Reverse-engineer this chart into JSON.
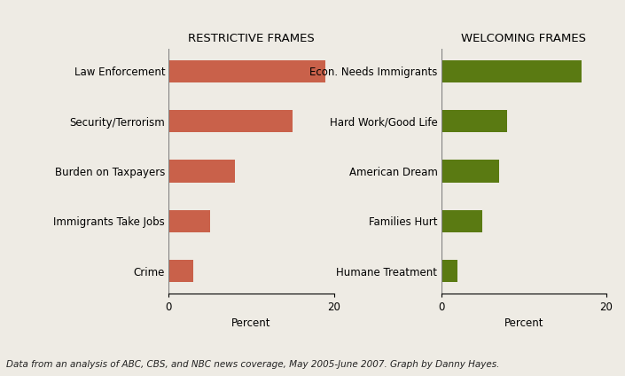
{
  "restrictive_labels": [
    "Law Enforcement",
    "Security/Terrorism",
    "Burden on Taxpayers",
    "Immigrants Take Jobs",
    "Crime"
  ],
  "restrictive_values": [
    19,
    15,
    8,
    5,
    3
  ],
  "welcoming_labels": [
    "Econ. Needs Immigrants",
    "Hard Work/Good Life",
    "American Dream",
    "Families Hurt",
    "Humane Treatment"
  ],
  "welcoming_values": [
    17,
    8,
    7,
    5,
    2
  ],
  "restrictive_color": "#c9614a",
  "welcoming_color": "#5a7a12",
  "restrictive_title": "RESTRICTIVE FRAMES",
  "welcoming_title": "WELCOMING FRAMES",
  "xlabel": "Percent",
  "xlim": [
    0,
    20
  ],
  "xticks": [
    0,
    20
  ],
  "xticklabels": [
    "0",
    "20"
  ],
  "footnote": "Data from an analysis of ABC, CBS, and NBC news coverage, May 2005-June 2007. Graph by Danny Hayes.",
  "background_color": "#eeebe4",
  "title_fontsize": 9.5,
  "label_fontsize": 8.5,
  "tick_fontsize": 8.5,
  "footnote_fontsize": 7.5,
  "bar_height": 0.45
}
